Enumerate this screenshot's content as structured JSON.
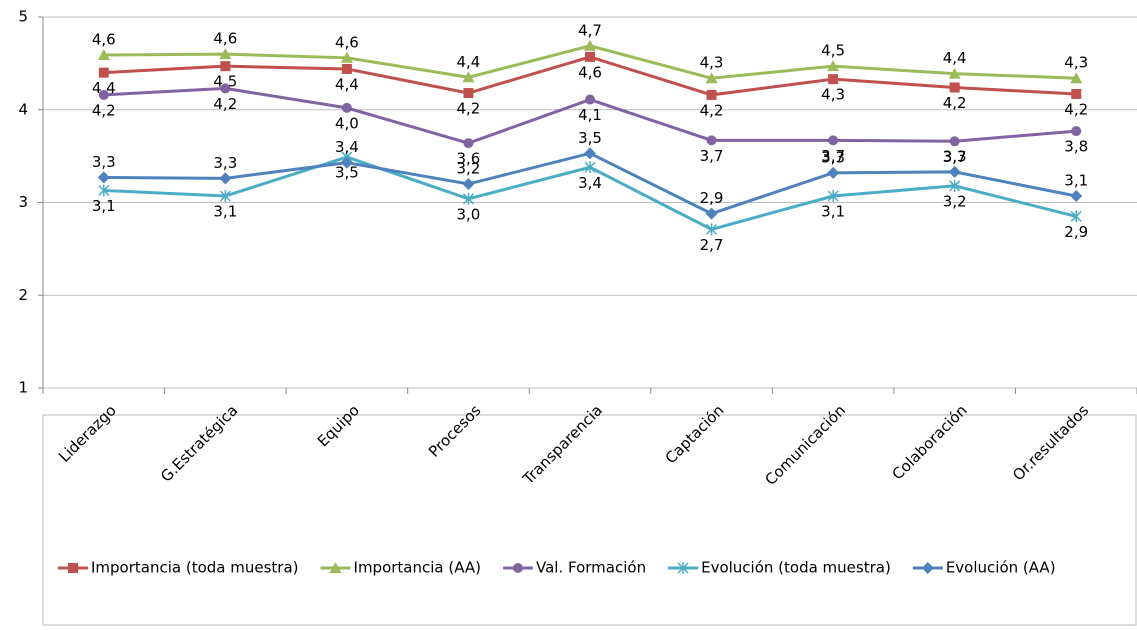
{
  "chart_data": {
    "type": "line",
    "categories": [
      "Liderazgo",
      "G.Estratégica",
      "Equipo",
      "Procesos",
      "Transparencia",
      "Captación",
      "Comunicación",
      "Colaboración",
      "Or.resultados"
    ],
    "ylim": [
      1,
      5
    ],
    "yticks": [
      1,
      2,
      3,
      4,
      5
    ],
    "grid": true,
    "legend": "bottom",
    "series": [
      {
        "name": "Importancia (toda muestra)",
        "color": "#c0504d",
        "values": [
          4.4,
          4.47,
          4.44,
          4.18,
          4.57,
          4.16,
          4.33,
          4.24,
          4.17
        ],
        "value_labels": [
          "4,4",
          "4,5",
          "4,4",
          "4,2",
          "4,6",
          "4,2",
          "4,3",
          "4,2",
          "4,2"
        ]
      },
      {
        "name": "Importancia (AA)",
        "color": "#9bbb59",
        "values": [
          4.59,
          4.6,
          4.56,
          4.35,
          4.69,
          4.34,
          4.47,
          4.39,
          4.34
        ],
        "value_labels": [
          "4,6",
          "4,6",
          "4,6",
          "4,4",
          "4,7",
          "4,3",
          "4,5",
          "4,4",
          "4,3"
        ]
      },
      {
        "name": "Val. Formación",
        "color": "#8064a2",
        "values": [
          4.16,
          4.23,
          4.02,
          3.64,
          4.11,
          3.67,
          3.67,
          3.66,
          3.77
        ],
        "value_labels": [
          "4,2",
          "4,2",
          "4,0",
          "3,6",
          "4,1",
          "3,7",
          "3,7",
          "3,7",
          "3,8"
        ]
      },
      {
        "name": "Evolución (toda muestra)",
        "color": "#4bacc6",
        "values": [
          3.13,
          3.07,
          3.49,
          3.04,
          3.38,
          2.71,
          3.07,
          3.18,
          2.85
        ],
        "value_labels": [
          "3,1",
          "3,1",
          "3,5",
          "3,0",
          "3,4",
          "2,7",
          "3,1",
          "3,2",
          "2,9"
        ]
      },
      {
        "name": "Evolución (AA)",
        "color": "#4f81bd",
        "values": [
          3.27,
          3.26,
          3.43,
          3.2,
          3.53,
          2.88,
          3.32,
          3.33,
          3.07
        ],
        "value_labels": [
          "3,3",
          "3,3",
          "3,4",
          "3,2",
          "3,5",
          "2,9",
          "3,3",
          "3,3",
          "3,1"
        ]
      }
    ]
  }
}
